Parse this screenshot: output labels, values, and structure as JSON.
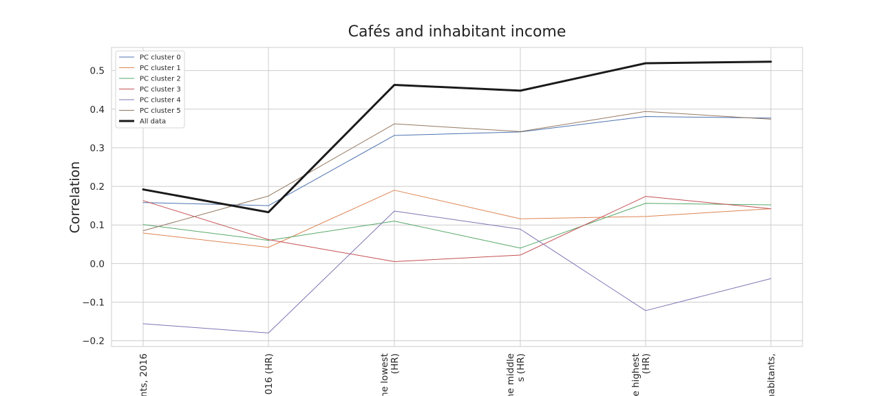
{
  "chart_data": {
    "type": "line",
    "title": "Cafés and inhabitant income",
    "xlabel": "",
    "ylabel": "Correlation",
    "ylim": [
      -0.215,
      0.56
    ],
    "yticks": [
      -0.2,
      -0.1,
      0.0,
      0.1,
      0.2,
      0.3,
      0.4,
      0.5
    ],
    "ytick_labels": [
      "−0.2",
      "−0.1",
      "0.0",
      "0.1",
      "0.2",
      "0.3",
      "0.4",
      "0.5"
    ],
    "categories": [
      [
        "nts, 2016"
      ],
      [
        "016 (HR)"
      ],
      [
        "ne lowest",
        "(HR)"
      ],
      [
        "ne middle",
        "s (HR)"
      ],
      [
        "e highest",
        "(HR)"
      ],
      [
        "habitants,"
      ]
    ],
    "grid": true,
    "legend_position": "top-left",
    "series": [
      {
        "name": "PC cluster 0",
        "color": "#4c72b0",
        "values": [
          0.158,
          0.15,
          0.332,
          0.341,
          0.381,
          0.377
        ],
        "thick": false
      },
      {
        "name": "PC cluster 1",
        "color": "#dd8452",
        "values": [
          0.079,
          0.042,
          0.19,
          0.116,
          0.122,
          0.142
        ],
        "thick": false
      },
      {
        "name": "PC cluster 2",
        "color": "#55a868",
        "values": [
          0.101,
          0.06,
          0.11,
          0.04,
          0.156,
          0.152
        ],
        "thick": false
      },
      {
        "name": "PC cluster 3",
        "color": "#c44e52",
        "values": [
          0.163,
          0.062,
          0.005,
          0.022,
          0.174,
          0.142
        ],
        "thick": false
      },
      {
        "name": "PC cluster 4",
        "color": "#8172b3",
        "values": [
          -0.156,
          -0.18,
          0.136,
          0.089,
          -0.122,
          -0.039
        ],
        "thick": false
      },
      {
        "name": "PC cluster 5",
        "color": "#937860",
        "values": [
          0.085,
          0.175,
          0.362,
          0.342,
          0.394,
          0.374
        ],
        "thick": false
      },
      {
        "name": "All data",
        "color": "#1a1a1a",
        "values": [
          0.192,
          0.133,
          0.463,
          0.448,
          0.519,
          0.523
        ],
        "thick": true
      }
    ]
  }
}
